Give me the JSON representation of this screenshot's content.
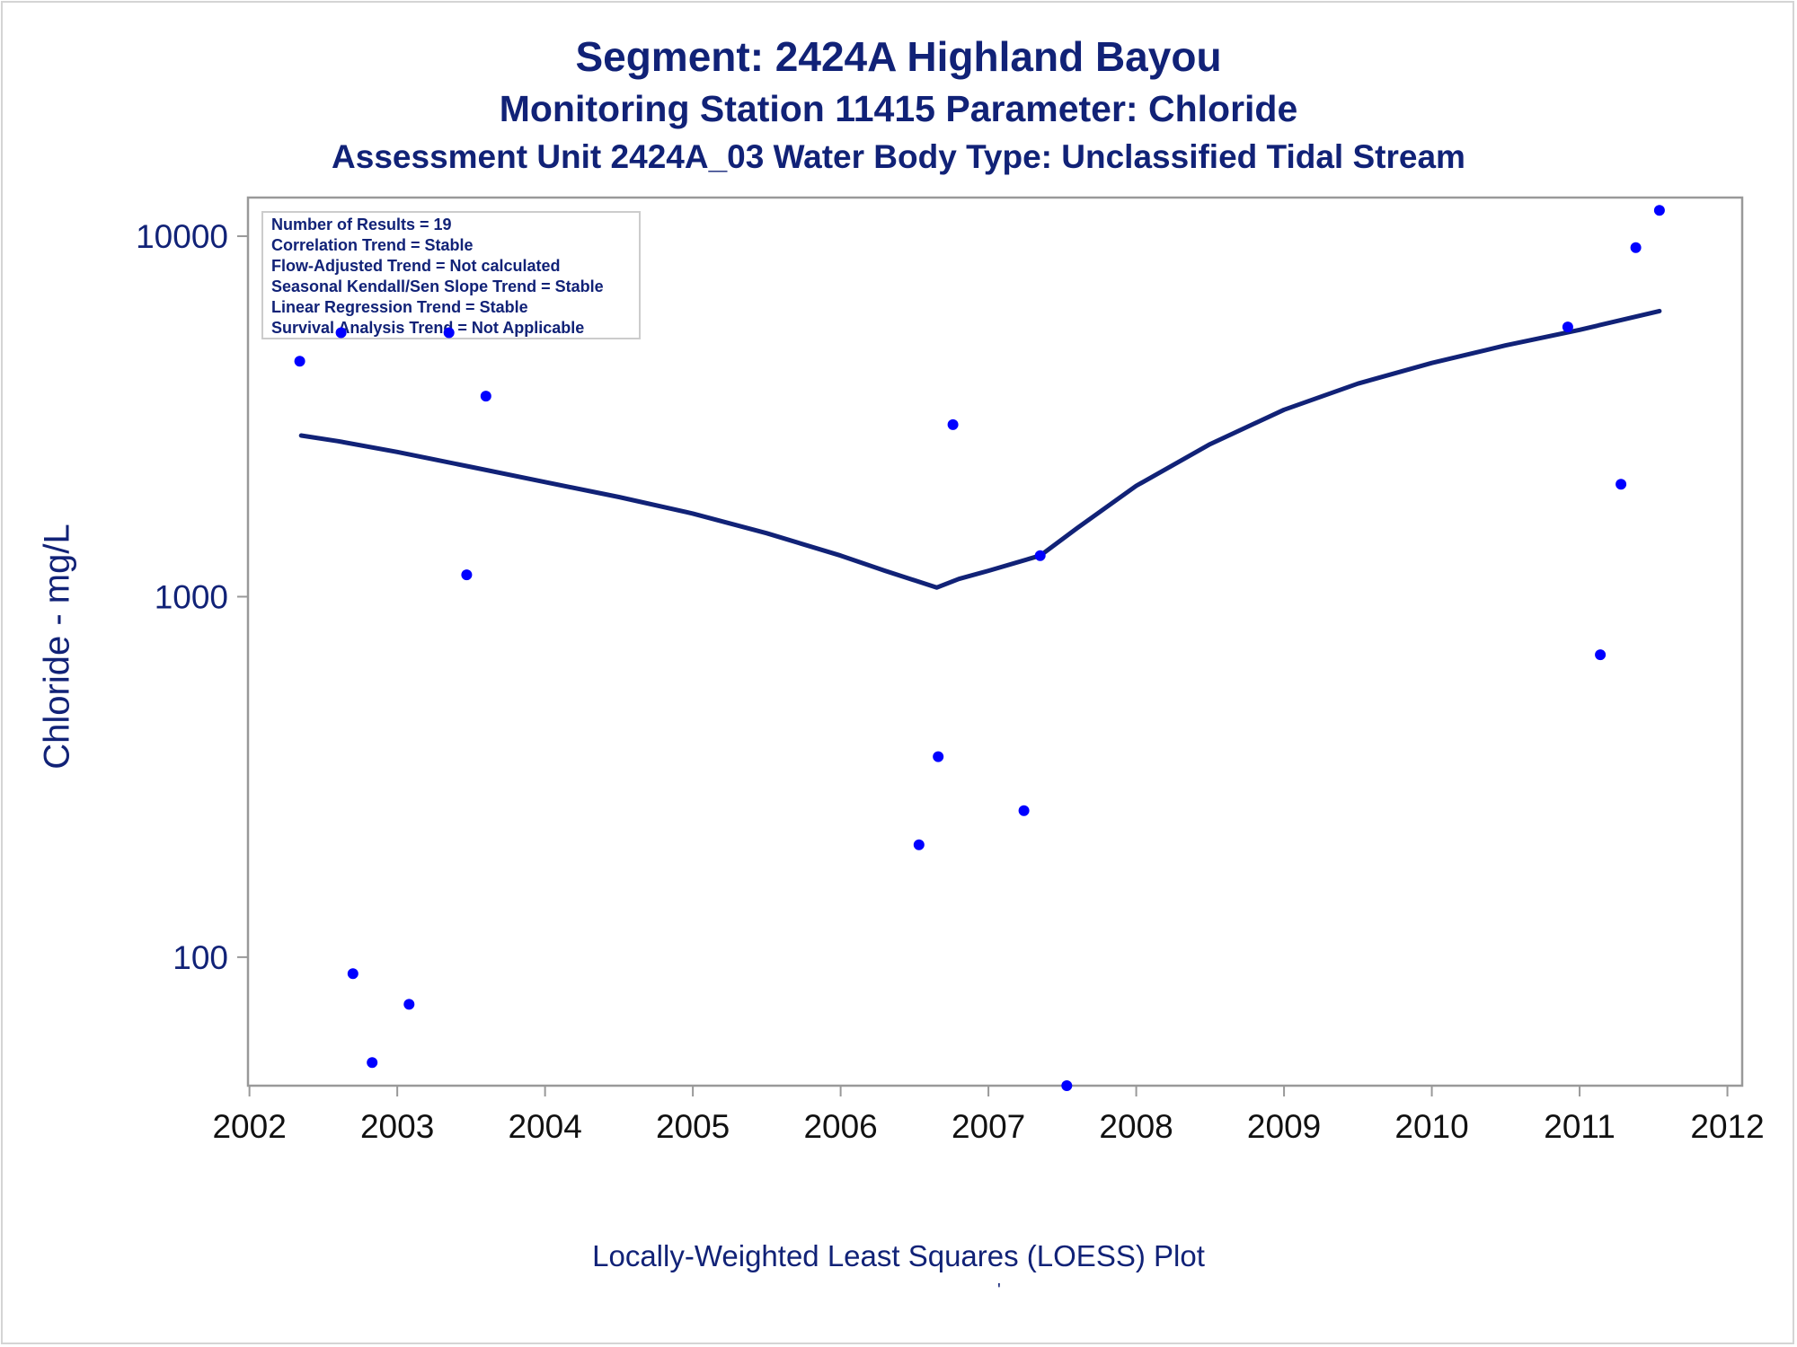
{
  "titles": {
    "line1": "Segment: 2424A  Highland Bayou",
    "line2": "Monitoring Station 11415 Parameter: Chloride",
    "line3": "Assessment Unit 2424A_03   Water Body Type: Unclassified Tidal Stream"
  },
  "footnote": "Locally-Weighted Least Squares (LOESS) Plot",
  "footnote_mark": "'",
  "stats_box": [
    "Number of Results = 19",
    "Correlation Trend = Stable",
    "Flow-Adjusted Trend = Not calculated",
    "Seasonal Kendall/Sen Slope Trend = Stable",
    "Linear Regression Trend = Stable",
    "Survival Analysis Trend = Not Applicable"
  ],
  "colors": {
    "title": "#112277",
    "points": "#0000ff",
    "loess": "#112277",
    "frame": "#999999"
  },
  "chart_data": {
    "type": "scatter",
    "title": "Segment: 2424A  Highland Bayou",
    "xlabel": "",
    "ylabel": "Chloride - mg/L",
    "x_ticks": [
      2002,
      2003,
      2004,
      2005,
      2006,
      2007,
      2008,
      2009,
      2010,
      2011,
      2012
    ],
    "xlim": [
      2001.99,
      2012.1
    ],
    "y_scale": "log",
    "y_ticks": [
      100,
      1000,
      10000
    ],
    "ylim": [
      44,
      12800
    ],
    "grid": false,
    "series": [
      {
        "kind": "points",
        "x": [
          2002.34,
          2002.62,
          2002.7,
          2002.83,
          2003.08,
          2003.35,
          2003.47,
          2003.6,
          2006.53,
          2006.66,
          2006.76,
          2007.24,
          2007.35,
          2007.53,
          2010.92,
          2011.14,
          2011.28,
          2011.38,
          2011.54
        ],
        "y": [
          4500,
          5400,
          90,
          51,
          74,
          5400,
          1150,
          3600,
          205,
          360,
          3000,
          255,
          1300,
          44,
          5600,
          690,
          2050,
          9300,
          11800
        ]
      },
      {
        "kind": "loess",
        "x": [
          2002.35,
          2002.6,
          2003.0,
          2003.5,
          2004.0,
          2004.5,
          2005.0,
          2005.5,
          2006.0,
          2006.3,
          2006.65,
          2006.8,
          2007.0,
          2007.35,
          2007.6,
          2008.0,
          2008.5,
          2009.0,
          2009.5,
          2010.0,
          2010.5,
          2011.0,
          2011.54
        ],
        "y": [
          2800,
          2700,
          2520,
          2290,
          2080,
          1890,
          1700,
          1500,
          1300,
          1180,
          1060,
          1120,
          1180,
          1300,
          1550,
          2030,
          2650,
          3300,
          3900,
          4450,
          4980,
          5500,
          6200
        ]
      }
    ]
  }
}
